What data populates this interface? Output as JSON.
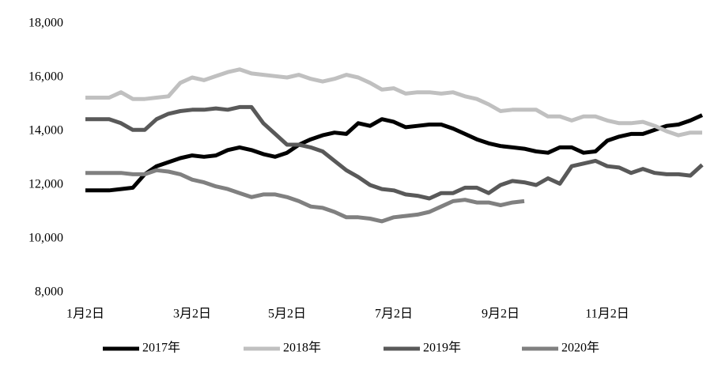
{
  "chart_data": {
    "type": "line",
    "categories": [
      "1月2日",
      null,
      null,
      null,
      null,
      null,
      null,
      null,
      null,
      "3月2日",
      null,
      null,
      null,
      null,
      null,
      null,
      null,
      "5月2日",
      null,
      null,
      null,
      null,
      null,
      null,
      null,
      null,
      "7月2日",
      null,
      null,
      null,
      null,
      null,
      null,
      null,
      null,
      "9月2日",
      null,
      null,
      null,
      null,
      null,
      null,
      null,
      null,
      "11月2日",
      null,
      null,
      null,
      null,
      null,
      null,
      null,
      null
    ],
    "series": [
      {
        "name": "2017年",
        "color": "#000000",
        "values": [
          11800,
          11800,
          11800,
          11850,
          11900,
          12400,
          12700,
          12850,
          13000,
          13100,
          13050,
          13100,
          13300,
          13400,
          13300,
          13150,
          13050,
          13200,
          13500,
          13700,
          13850,
          13950,
          13900,
          14300,
          14200,
          14450,
          14350,
          14150,
          14200,
          14250,
          14250,
          14100,
          13900,
          13700,
          13550,
          13450,
          13400,
          13350,
          13250,
          13200,
          13400,
          13400,
          13200,
          13250,
          13650,
          13800,
          13900,
          13900,
          14050,
          14200,
          14250,
          14400,
          14600
        ]
      },
      {
        "name": "2018年",
        "color": "#c0c0c0",
        "values": [
          15250,
          15250,
          15250,
          15450,
          15200,
          15200,
          15250,
          15300,
          15800,
          16000,
          15900,
          16050,
          16200,
          16300,
          16150,
          16100,
          16050,
          16000,
          16100,
          15950,
          15850,
          15950,
          16100,
          16000,
          15800,
          15550,
          15600,
          15400,
          15450,
          15450,
          15400,
          15450,
          15300,
          15200,
          15000,
          14750,
          14800,
          14800,
          14800,
          14550,
          14550,
          14400,
          14550,
          14550,
          14400,
          14300,
          14300,
          14350,
          14200,
          14000,
          13850,
          13950,
          13950
        ]
      },
      {
        "name": "2019年",
        "color": "#595959",
        "values": [
          14450,
          14450,
          14450,
          14300,
          14050,
          14050,
          14450,
          14650,
          14750,
          14800,
          14800,
          14850,
          14800,
          14900,
          14900,
          14300,
          13900,
          13500,
          13500,
          13400,
          13250,
          12900,
          12550,
          12300,
          12000,
          11850,
          11800,
          11650,
          11600,
          11500,
          11700,
          11700,
          11900,
          11900,
          11700,
          12000,
          12150,
          12100,
          12000,
          12250,
          12050,
          12700,
          12800,
          12900,
          12700,
          12650,
          12450,
          12600,
          12450,
          12400,
          12400,
          12350,
          12750
        ]
      },
      {
        "name": "2020年",
        "color": "#808080",
        "values": [
          12450,
          12450,
          12450,
          12450,
          12400,
          12400,
          12550,
          12500,
          12400,
          12200,
          12100,
          11950,
          11850,
          11700,
          11550,
          11650,
          11650,
          11550,
          11400,
          11200,
          11150,
          11000,
          10800,
          10800,
          10750,
          10650,
          10800,
          10850,
          10900,
          11000,
          11200,
          11400,
          11450,
          11350,
          11350,
          11250,
          11350,
          11400,
          null,
          null,
          null,
          null,
          null,
          null,
          null,
          null,
          null,
          null,
          null,
          null,
          null,
          null,
          null
        ]
      }
    ],
    "ylim": [
      8000,
      18000
    ],
    "yticks": [
      {
        "value": 8000,
        "label": "8,000"
      },
      {
        "value": 10000,
        "label": "10,000"
      },
      {
        "value": 12000,
        "label": "12,000"
      },
      {
        "value": 14000,
        "label": "14,000"
      },
      {
        "value": 16000,
        "label": "16,000"
      },
      {
        "value": 18000,
        "label": "18,000"
      }
    ],
    "legend": "bottom"
  }
}
